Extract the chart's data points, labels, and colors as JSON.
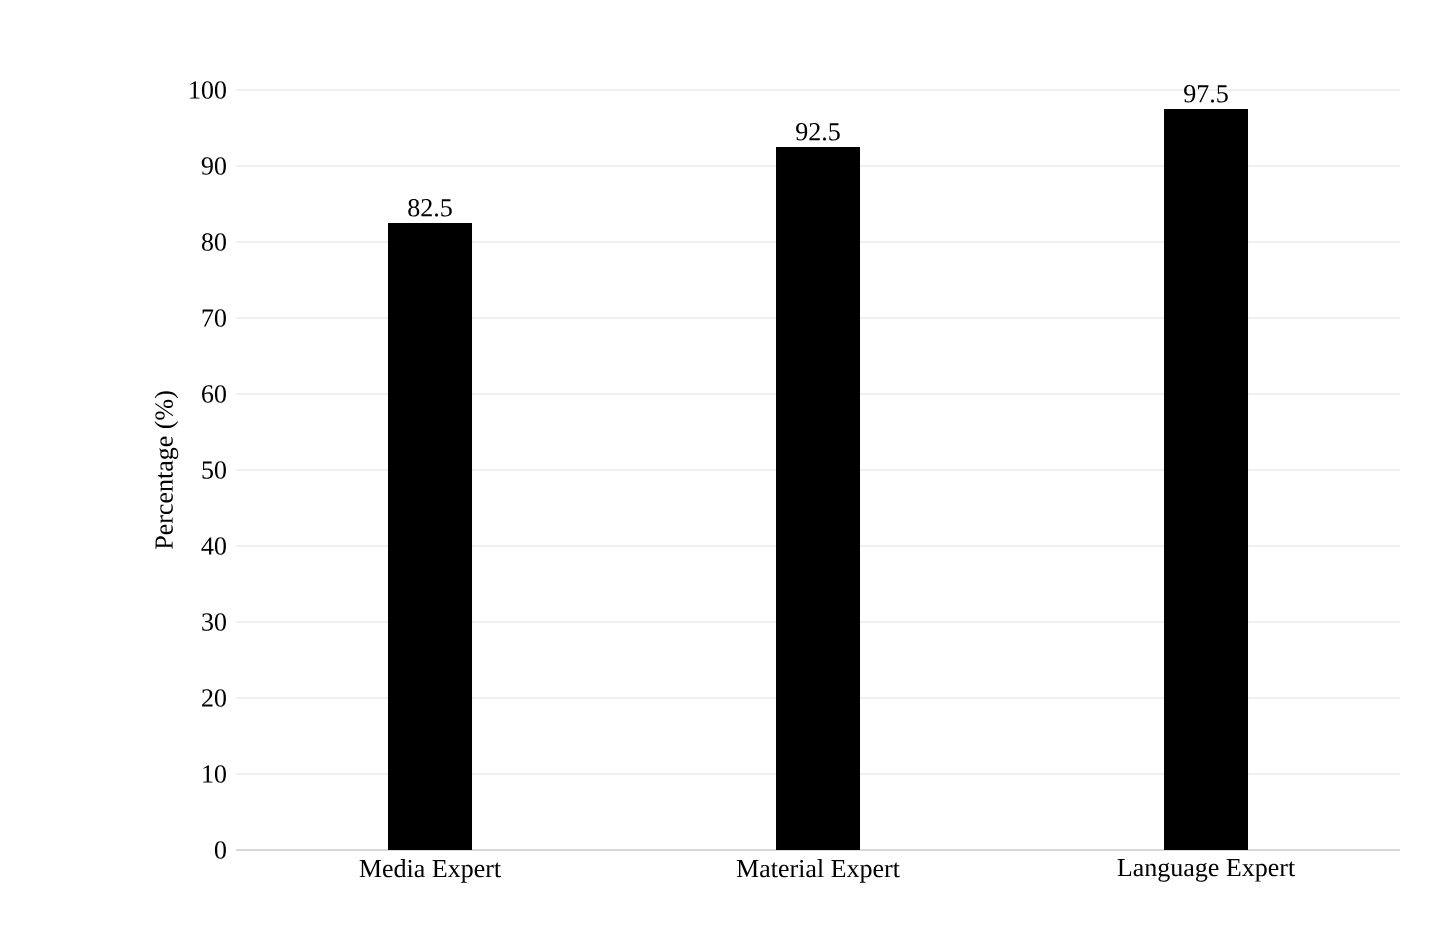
{
  "chart_data": {
    "type": "bar",
    "ylabel": "Percentage (%)",
    "categories": [
      "Media Expert",
      "Material Expert",
      "Language Expert"
    ],
    "values": [
      82.5,
      92.5,
      97.5
    ],
    "color": "#000000",
    "ylim": [
      0,
      100
    ],
    "yticks": [
      0,
      10,
      20,
      30,
      40,
      50,
      60,
      70,
      80,
      90,
      100
    ],
    "grid": "y",
    "data_labels": true
  }
}
